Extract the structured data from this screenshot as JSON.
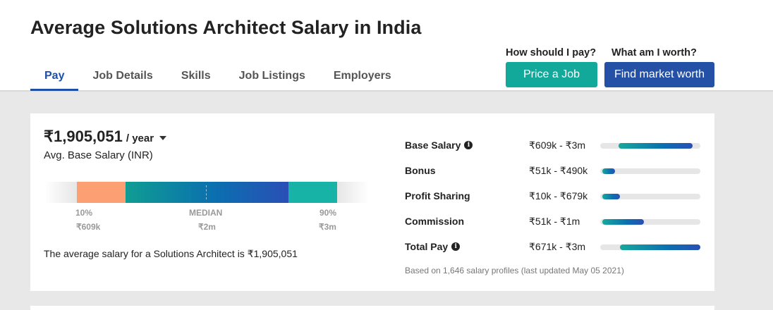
{
  "header": {
    "title": "Average Solutions Architect Salary in India",
    "tabs": [
      {
        "label": "Pay",
        "active": true
      },
      {
        "label": "Job Details",
        "active": false
      },
      {
        "label": "Skills",
        "active": false
      },
      {
        "label": "Job Listings",
        "active": false
      },
      {
        "label": "Employers",
        "active": false
      }
    ],
    "cta": {
      "price_question": "How should I pay?",
      "price_button": "Price a Job",
      "worth_question": "What am I worth?",
      "worth_button": "Find market worth"
    }
  },
  "summary": {
    "amount": "₹1,905,051",
    "period": "/ year",
    "label": "Avg. Base Salary (INR)",
    "p10_label": "10%",
    "p10_value": "₹609k",
    "median_label": "MEDIAN",
    "median_value": "₹2m",
    "p90_label": "90%",
    "p90_value": "₹3m",
    "sentence": "The average salary for a Solutions Architect is ₹1,905,051"
  },
  "breakdown": [
    {
      "label": "Base Salary",
      "info": true,
      "range": "₹609k - ₹3m",
      "fill_start": 0.18,
      "fill_end": 0.92
    },
    {
      "label": "Bonus",
      "info": false,
      "range": "₹51k - ₹490k",
      "fill_start": 0.02,
      "fill_end": 0.15
    },
    {
      "label": "Profit Sharing",
      "info": false,
      "range": "₹10k - ₹679k",
      "fill_start": 0.02,
      "fill_end": 0.2
    },
    {
      "label": "Commission",
      "info": false,
      "range": "₹51k - ₹1m",
      "fill_start": 0.02,
      "fill_end": 0.44
    },
    {
      "label": "Total Pay",
      "info": true,
      "range": "₹671k - ₹3m",
      "fill_start": 0.2,
      "fill_end": 1.0
    }
  ],
  "footnote": "Based on 1,646 salary profiles (last updated May 05 2021)",
  "colors": {
    "accent_blue": "#2450a5",
    "accent_teal": "#12a99a",
    "p10_orange": "#fc9f73"
  },
  "icons": {
    "period_dropdown": "caret-down-icon",
    "info": "info-icon"
  }
}
